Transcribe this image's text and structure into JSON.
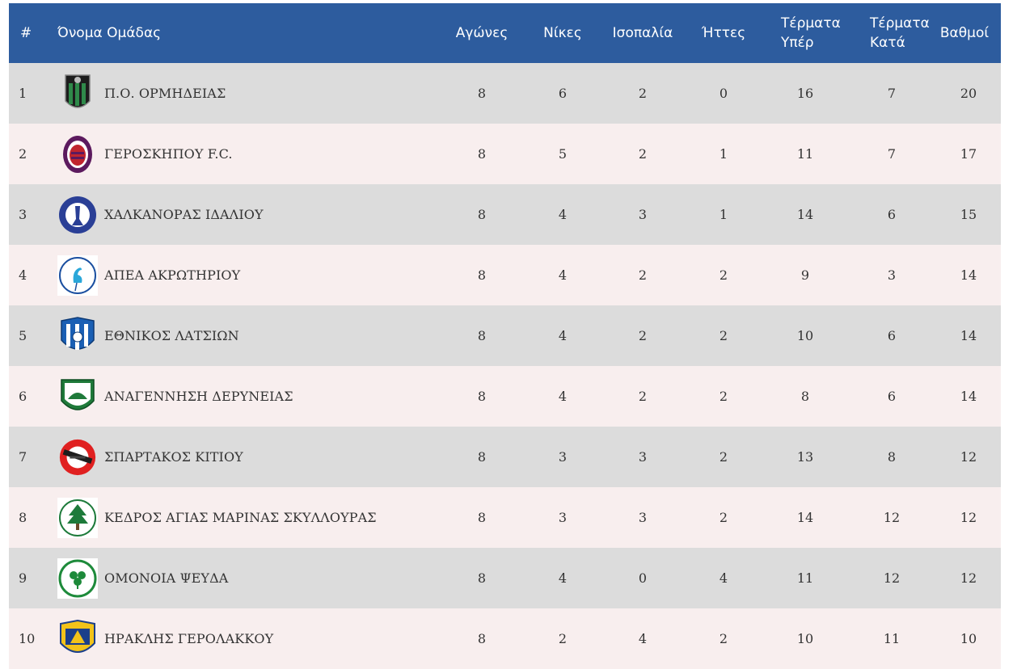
{
  "header": {
    "rank": "#",
    "team": "Όνομα Ομάδας",
    "played": "Αγώνες",
    "wins": "Νίκες",
    "draws": "Ισοπαλία",
    "losses": "Ήττες",
    "goals_for_line1": "Τέρματα",
    "goals_for_line2": "Υπέρ",
    "goals_against_line1": "Τέρματα",
    "goals_against_line2": "Κατά",
    "points": "Βαθμοί"
  },
  "rows": [
    {
      "rank": "1",
      "team": "Π.Ο. ΟΡΜΗΔΕΙΑΣ",
      "logo": "ormideia-crest-icon",
      "played": "8",
      "wins": "6",
      "draws": "2",
      "losses": "0",
      "gf": "16",
      "ga": "7",
      "pts": "20"
    },
    {
      "rank": "2",
      "team": "ΓΕΡΟΣΚΗΠΟΥ F.C.",
      "logo": "geroskipou-crest-icon",
      "played": "8",
      "wins": "5",
      "draws": "2",
      "losses": "1",
      "gf": "11",
      "ga": "7",
      "pts": "17"
    },
    {
      "rank": "3",
      "team": "ΧΑΛΚΑΝΟΡΑΣ ΙΔΑΛΙΟΥ",
      "logo": "chalkanoras-crest-icon",
      "played": "8",
      "wins": "4",
      "draws": "3",
      "losses": "1",
      "gf": "14",
      "ga": "6",
      "pts": "15"
    },
    {
      "rank": "4",
      "team": "ΑΠΕΑ ΑΚΡΩΤΗΡΙΟΥ",
      "logo": "apea-crest-icon",
      "played": "8",
      "wins": "4",
      "draws": "2",
      "losses": "2",
      "gf": "9",
      "ga": "3",
      "pts": "14"
    },
    {
      "rank": "5",
      "team": "ΕΘΝΙΚΟΣ ΛΑΤΣΙΩΝ",
      "logo": "ethnikos-crest-icon",
      "played": "8",
      "wins": "4",
      "draws": "2",
      "losses": "2",
      "gf": "10",
      "ga": "6",
      "pts": "14"
    },
    {
      "rank": "6",
      "team": "ΑΝΑΓΕΝΝΗΣΗ ΔΕΡΥΝΕΙΑΣ",
      "logo": "anagennisi-crest-icon",
      "played": "8",
      "wins": "4",
      "draws": "2",
      "losses": "2",
      "gf": "8",
      "ga": "6",
      "pts": "14"
    },
    {
      "rank": "7",
      "team": "ΣΠΑΡΤΑΚΟΣ ΚΙΤΙΟΥ",
      "logo": "spartakos-crest-icon",
      "played": "8",
      "wins": "3",
      "draws": "3",
      "losses": "2",
      "gf": "13",
      "ga": "8",
      "pts": "12"
    },
    {
      "rank": "8",
      "team": "ΚΕΔΡΟΣ ΑΓΙΑΣ ΜΑΡΙΝΑΣ ΣΚΥΛΛΟΥΡΑΣ",
      "logo": "kedros-crest-icon",
      "played": "8",
      "wins": "3",
      "draws": "3",
      "losses": "2",
      "gf": "14",
      "ga": "12",
      "pts": "12"
    },
    {
      "rank": "9",
      "team": "ΟΜΟΝΟΙΑ ΨΕΥΔΑ",
      "logo": "omonoia-crest-icon",
      "played": "8",
      "wins": "4",
      "draws": "0",
      "losses": "4",
      "gf": "11",
      "ga": "12",
      "pts": "12"
    },
    {
      "rank": "10",
      "team": "ΗΡΑΚΛΗΣ ΓΕΡΟΛΑΚΚΟΥ",
      "logo": "iraklis-crest-icon",
      "played": "8",
      "wins": "2",
      "draws": "4",
      "losses": "2",
      "gf": "10",
      "ga": "11",
      "pts": "10"
    }
  ],
  "colors": {
    "header_bg": "#2d5c9e",
    "row_odd_bg": "#dcdcdc",
    "row_even_bg": "#f8eeee"
  }
}
